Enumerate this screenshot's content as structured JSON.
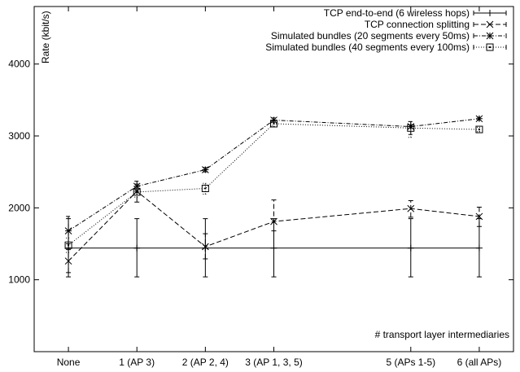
{
  "chart_data": {
    "type": "line",
    "title": "",
    "ylabel": "Rate (kbit/s)",
    "xlabel": "# transport layer intermediaries",
    "x_ticks": [
      {
        "x": 0,
        "label": "None"
      },
      {
        "x": 1,
        "label": "1 (AP 3)"
      },
      {
        "x": 2,
        "label": "2 (AP 2, 4)"
      },
      {
        "x": 3,
        "label": "3 (AP 1, 3, 5)"
      },
      {
        "x": 5,
        "label": "5 (APs 1-5)"
      },
      {
        "x": 6,
        "label": "6 (all APs)"
      }
    ],
    "y_ticks": [
      1000,
      2000,
      3000,
      4000
    ],
    "xlim": [
      -0.5,
      6.5
    ],
    "ylim": [
      0,
      4800
    ],
    "grid": false,
    "legend_position": "top-right",
    "series": [
      {
        "name": "TCP end-to-end (6 wireless hops)",
        "style": "solid",
        "marker": "plus",
        "points": [
          {
            "x": 0,
            "y": 1440,
            "err_low": 1040,
            "err_high": 1850
          },
          {
            "x": 1,
            "y": 1440,
            "err_low": 1040,
            "err_high": 1850
          },
          {
            "x": 2,
            "y": 1440,
            "err_low": 1040,
            "err_high": 1850
          },
          {
            "x": 3,
            "y": 1440,
            "err_low": 1040,
            "err_high": 1850
          },
          {
            "x": 5,
            "y": 1440,
            "err_low": 1040,
            "err_high": 1850
          },
          {
            "x": 6,
            "y": 1440,
            "err_low": 1040,
            "err_high": 1850
          }
        ]
      },
      {
        "name": "TCP connection splitting",
        "style": "dashed",
        "marker": "x",
        "points": [
          {
            "x": 0,
            "y": 1260,
            "err_low": 1100,
            "err_high": 1420
          },
          {
            "x": 1,
            "y": 2230,
            "err_low": 2080,
            "err_high": 2330
          },
          {
            "x": 2,
            "y": 1460,
            "err_low": 1290,
            "err_high": 1640
          },
          {
            "x": 3,
            "y": 1810,
            "err_low": 1680,
            "err_high": 2110
          },
          {
            "x": 5,
            "y": 1990,
            "err_low": 1870,
            "err_high": 2100
          },
          {
            "x": 6,
            "y": 1880,
            "err_low": 1740,
            "err_high": 2010
          }
        ]
      },
      {
        "name": "Simulated bundles (20 segments every 50ms)",
        "style": "dashdot",
        "marker": "star",
        "points": [
          {
            "x": 0,
            "y": 1680,
            "err_low": 1500,
            "err_high": 1880
          },
          {
            "x": 1,
            "y": 2300,
            "err_low": 2230,
            "err_high": 2370
          },
          {
            "x": 2,
            "y": 2530,
            "err_low": 2500,
            "err_high": 2560
          },
          {
            "x": 3,
            "y": 3220,
            "err_low": 3190,
            "err_high": 3250
          },
          {
            "x": 5,
            "y": 3130,
            "err_low": 3020,
            "err_high": 3200
          },
          {
            "x": 6,
            "y": 3240,
            "err_low": 3220,
            "err_high": 3260
          }
        ]
      },
      {
        "name": "Simulated bundles (40 segments every 100ms)",
        "style": "dotted",
        "marker": "square",
        "points": [
          {
            "x": 0,
            "y": 1480,
            "err_low": 1380,
            "err_high": 1580
          },
          {
            "x": 1,
            "y": 2220,
            "err_low": 2150,
            "err_high": 2290
          },
          {
            "x": 2,
            "y": 2270,
            "err_low": 2190,
            "err_high": 2340
          },
          {
            "x": 3,
            "y": 3170,
            "err_low": 3130,
            "err_high": 3210
          },
          {
            "x": 5,
            "y": 3110,
            "err_low": 2980,
            "err_high": 3200
          },
          {
            "x": 6,
            "y": 3090,
            "err_low": 3060,
            "err_high": 3120
          }
        ]
      }
    ]
  }
}
